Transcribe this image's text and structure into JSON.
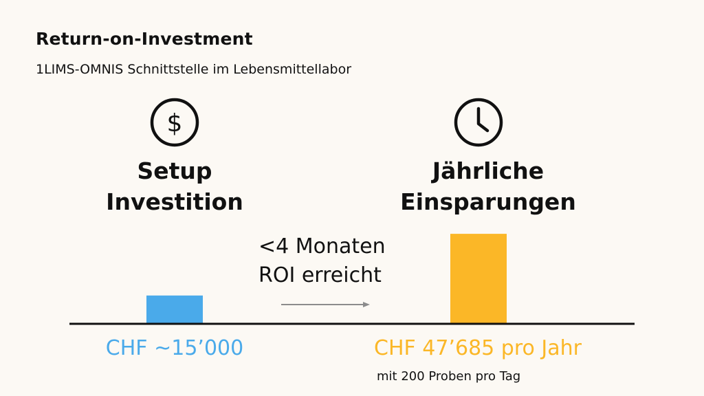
{
  "header": {
    "title": "Return-on-Investment",
    "subtitle": "1LIMS-OMNIS Schnittstelle im Lebensmittellabor"
  },
  "columns": {
    "left": {
      "icon": "dollar-icon",
      "heading_line1": "Setup",
      "heading_line2": "Investition",
      "amount_label": "CHF ~15’000"
    },
    "right": {
      "icon": "clock-icon",
      "heading_line1": "Jährliche",
      "heading_line2": "Einsparungen",
      "amount_label": "CHF 47’685 pro Jahr",
      "note": "mit 200 Proben pro Tag"
    }
  },
  "roi": {
    "line1": "<4 Monaten",
    "line2": "ROI erreicht"
  },
  "colors": {
    "invest": "#4aaaea",
    "savings": "#fbb727",
    "axis": "#111111",
    "arrow": "#8c8c8c"
  },
  "chart_data": {
    "type": "bar",
    "title": "Return-on-Investment",
    "categories": [
      "Setup Investition",
      "Jährliche Einsparungen"
    ],
    "values": [
      15000,
      47685
    ],
    "unit": "CHF",
    "ylim": [
      0,
      51000
    ],
    "xlabel": "",
    "ylabel": ""
  }
}
